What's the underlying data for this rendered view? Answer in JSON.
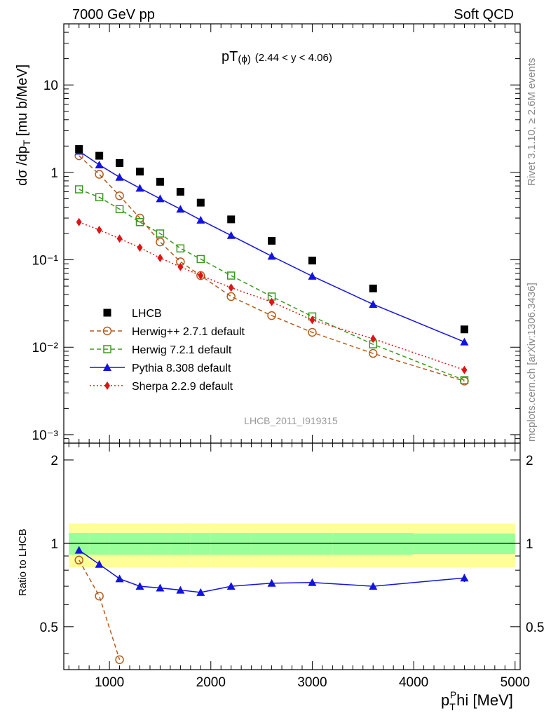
{
  "header": {
    "left": "7000 GeV pp",
    "right": "Soft QCD",
    "plot_title": "pT",
    "plot_title_phi": "(ϕ)",
    "plot_title_range": "(2.44 < y < 4.06)",
    "watermark": "LHCB_2011_I919315",
    "side_rivet": "Rivet 3.1.10, ≥ 2.6M events",
    "side_mcplots": "mcplots.cern.ch [arXiv:1306.3436]"
  },
  "axes": {
    "ylabel_main": "dσ /dp",
    "ylabel_main_sub": "T",
    "ylabel_main_unit": " [mu b/MeV]",
    "ylabel_ratio": "Ratio to LHCB",
    "xlabel_pre": "p",
    "xlabel_sub": "T",
    "xlabel_sup": "P",
    "xlabel_post": "hi [MeV]"
  },
  "colors": {
    "data": "#000000",
    "herwigpp": "#b35c1e",
    "herwig7": "#3a9a1e",
    "pythia": "#1414e0",
    "sherpa": "#e01414",
    "band_inner": "#99ff99",
    "band_outer": "#ffff99"
  },
  "chart_data": {
    "type": "scatter",
    "xlim": [
      550,
      5050
    ],
    "ylim_main": [
      0.0008,
      50
    ],
    "ylim_ratio": [
      0.35,
      2.3
    ],
    "log_y_main": true,
    "log_y_ratio": true,
    "x_ticks": [
      "1000",
      "2000",
      "3000",
      "4000",
      "5000"
    ],
    "y_ticks_main": [
      "10",
      "1",
      "10⁻¹",
      "10⁻²",
      "10⁻³"
    ],
    "y_ticks_ratio": [
      "2",
      "1",
      "0.5"
    ],
    "legend_position": "lower-left",
    "data_series": {
      "name": "LHCB",
      "x": [
        700,
        900,
        1100,
        1300,
        1500,
        1700,
        1900,
        2200,
        2600,
        3000,
        3600,
        4500
      ],
      "y": [
        1.85,
        1.55,
        1.28,
        1.02,
        0.78,
        0.6,
        0.45,
        0.29,
        0.165,
        0.098,
        0.047,
        0.016
      ]
    },
    "series": [
      {
        "name": "Herwig++ 2.7.1 default",
        "marker": "open-circle",
        "style": "dashed",
        "x": [
          700,
          900,
          1100,
          1300,
          1500,
          1700,
          1900,
          2200,
          2600,
          3000,
          3600,
          4500
        ],
        "y": [
          1.55,
          0.95,
          0.54,
          0.3,
          0.16,
          0.095,
          0.066,
          0.038,
          0.023,
          0.0148,
          0.0085,
          0.0041
        ],
        "ratio_x": [
          700,
          900,
          1100
        ],
        "ratio_y": [
          0.87,
          0.645,
          0.38
        ]
      },
      {
        "name": "Herwig 7.2.1 default",
        "marker": "open-square",
        "style": "dashed",
        "x": [
          700,
          900,
          1100,
          1300,
          1500,
          1700,
          1900,
          2200,
          2600,
          3000,
          3600,
          4500
        ],
        "y": [
          0.64,
          0.52,
          0.38,
          0.27,
          0.2,
          0.135,
          0.102,
          0.066,
          0.038,
          0.0225,
          0.0108,
          0.0042
        ],
        "ratio_x": [],
        "ratio_y": []
      },
      {
        "name": "Pythia 8.308 default",
        "marker": "filled-triangle",
        "style": "solid",
        "x": [
          700,
          900,
          1100,
          1300,
          1500,
          1700,
          1900,
          2200,
          2600,
          3000,
          3600,
          4500
        ],
        "y": [
          1.75,
          1.22,
          0.88,
          0.66,
          0.5,
          0.38,
          0.285,
          0.19,
          0.11,
          0.065,
          0.031,
          0.0115
        ],
        "ratio_x": [
          700,
          900,
          1100,
          1300,
          1500,
          1700,
          1900,
          2200,
          2600,
          3000,
          3600,
          4500
        ],
        "ratio_y": [
          0.945,
          0.84,
          0.745,
          0.7,
          0.69,
          0.678,
          0.665,
          0.7,
          0.718,
          0.722,
          0.7,
          0.75
        ]
      },
      {
        "name": "Sherpa 2.2.9 default",
        "marker": "filled-diamond",
        "style": "dotted",
        "x": [
          700,
          900,
          1100,
          1300,
          1500,
          1700,
          1900,
          2200,
          2600,
          3000,
          3600,
          4500
        ],
        "y": [
          0.27,
          0.22,
          0.175,
          0.138,
          0.105,
          0.083,
          0.066,
          0.048,
          0.033,
          0.0205,
          0.0125,
          0.0055
        ],
        "ratio_x": [],
        "ratio_y": []
      }
    ],
    "ratio_band": {
      "edges": [
        600,
        800,
        1000,
        1200,
        1400,
        1600,
        1800,
        2000,
        2400,
        2800,
        3200,
        4000,
        5000
      ],
      "inner": [
        0.09,
        0.09,
        0.09,
        0.09,
        0.09,
        0.09,
        0.09,
        0.09,
        0.09,
        0.09,
        0.09,
        0.085
      ],
      "outer": [
        0.18,
        0.18,
        0.18,
        0.18,
        0.18,
        0.18,
        0.18,
        0.18,
        0.18,
        0.18,
        0.18,
        0.18
      ]
    }
  }
}
